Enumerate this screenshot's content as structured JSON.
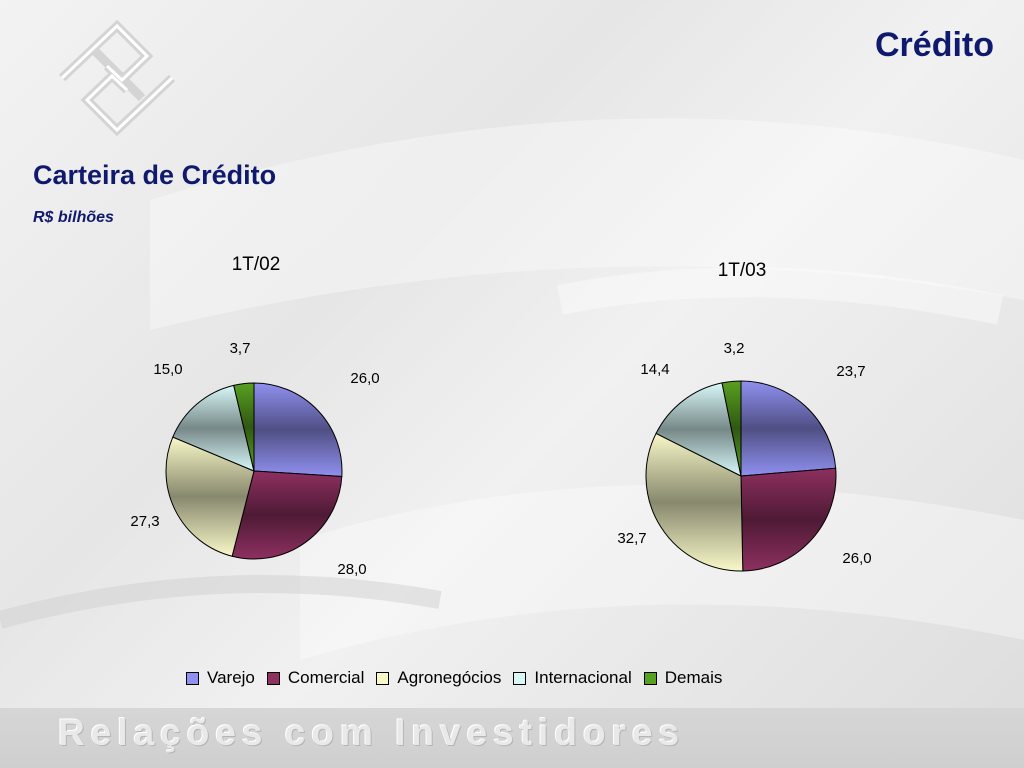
{
  "header": {
    "title": "Crédito"
  },
  "section": {
    "title": "Carteira de Crédito",
    "unit": "R$ bilhões"
  },
  "footer": {
    "text": "Relações com Investidores"
  },
  "colors": {
    "Varejo": "#9090f0",
    "Comercial": "#8e3060",
    "Agronegócios": "#f8f8c8",
    "Internacional": "#d8f8f8",
    "Demais": "#58a020",
    "title": "#0f1a6e"
  },
  "chart_data": [
    {
      "type": "pie",
      "title": "1T/02",
      "categories": [
        "Varejo",
        "Comercial",
        "Agronegócios",
        "Internacional",
        "Demais"
      ],
      "values": [
        26.0,
        28.0,
        27.3,
        15.0,
        3.7
      ],
      "labels": [
        "26,0",
        "28,0",
        "27,3",
        "15,0",
        "3,7"
      ]
    },
    {
      "type": "pie",
      "title": "1T/03",
      "categories": [
        "Varejo",
        "Comercial",
        "Agronegócios",
        "Internacional",
        "Demais"
      ],
      "values": [
        23.7,
        26.0,
        32.7,
        14.4,
        3.2
      ],
      "labels": [
        "23,7",
        "26,0",
        "32,7",
        "14,4",
        "3,2"
      ]
    }
  ],
  "legend": {
    "position": "bottom",
    "items": [
      "Varejo",
      "Comercial",
      "Agronegócios",
      "Internacional",
      "Demais"
    ]
  }
}
